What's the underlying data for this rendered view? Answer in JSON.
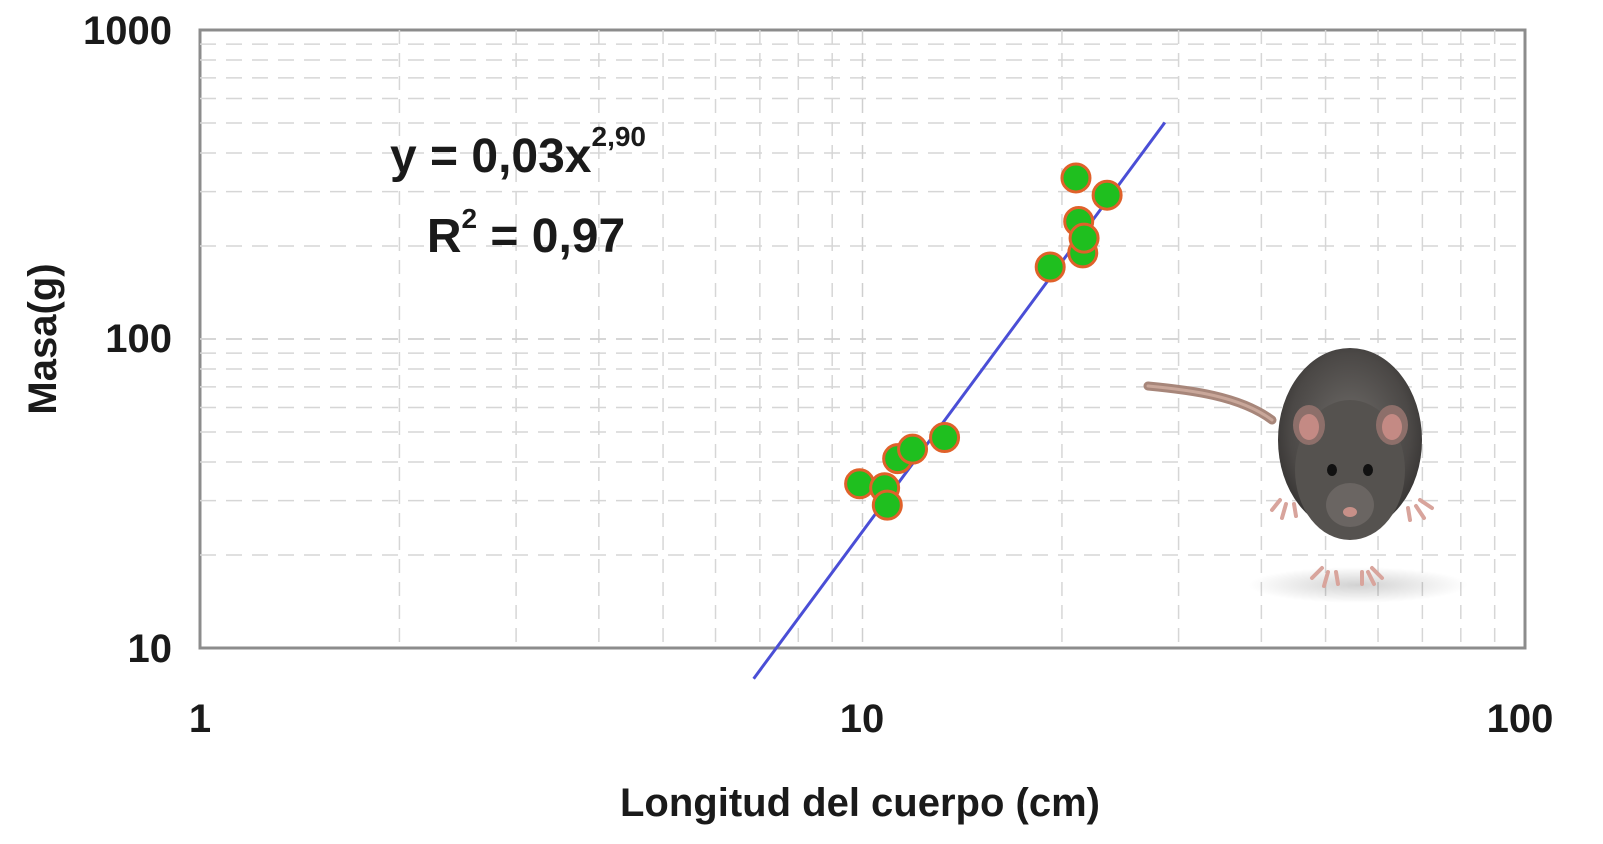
{
  "chart_data": {
    "type": "scatter",
    "xscale": "log",
    "yscale": "log",
    "xlim": [
      1,
      100
    ],
    "ylim": [
      10,
      1000
    ],
    "xticks": [
      "1",
      "10",
      "100"
    ],
    "yticks": [
      "10",
      "100",
      "1000"
    ],
    "xlabel": "Longitud del cuerpo (cm)",
    "ylabel": "Masa(g)",
    "grid": true,
    "equation": {
      "base": "y = 0,03x",
      "exponent": "2,90"
    },
    "r_squared": {
      "base": "R",
      "exponent": "2",
      "value": " = 0,97"
    },
    "series": [
      {
        "points": [
          {
            "x": 9.9,
            "y": 34
          },
          {
            "x": 10.8,
            "y": 33
          },
          {
            "x": 10.9,
            "y": 29
          },
          {
            "x": 11.3,
            "y": 41
          },
          {
            "x": 11.9,
            "y": 44
          },
          {
            "x": 13.3,
            "y": 48
          },
          {
            "x": 19.2,
            "y": 171
          },
          {
            "x": 21.0,
            "y": 332
          },
          {
            "x": 21.2,
            "y": 240
          },
          {
            "x": 21.5,
            "y": 190
          },
          {
            "x": 21.6,
            "y": 212
          },
          {
            "x": 23.4,
            "y": 292
          }
        ],
        "colors": {
          "fill": "#1fbf1f",
          "stroke": "#e0612a"
        }
      }
    ],
    "fit": {
      "type": "power",
      "a": 0.03,
      "b": 2.9,
      "x_range": [
        6.85,
        28.6
      ],
      "color": "#4a4ed6"
    },
    "decoration": "rat-photo"
  }
}
